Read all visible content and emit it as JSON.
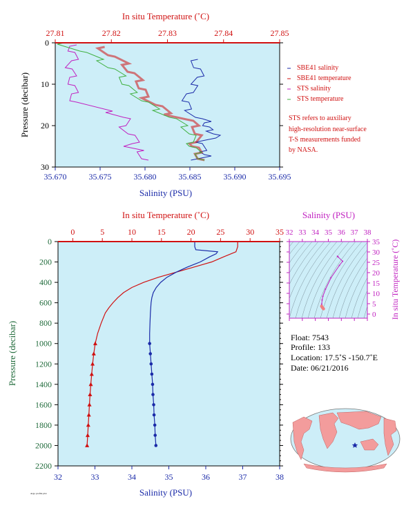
{
  "chart_data": [
    {
      "type": "line",
      "panel": "top",
      "top_axis_title": "In situ Temperature (˚C)",
      "bottom_axis_title": "Salinity (PSU)",
      "ylabel": "Pressure (decibar)",
      "top_ticks": [
        "27.81",
        "27.82",
        "27.83",
        "27.84",
        "27.85"
      ],
      "bottom_ticks": [
        "35.670",
        "35.675",
        "35.680",
        "35.685",
        "35.690",
        "35.695"
      ],
      "y_ticks": [
        "0",
        "10",
        "20",
        "30"
      ],
      "temp_range": [
        27.81,
        27.85
      ],
      "sal_range": [
        35.67,
        35.695
      ],
      "ylim": [
        30,
        0
      ],
      "grid": false,
      "legend_position": "right",
      "series": [
        {
          "name": "SBE41 salinity",
          "color": "#1a2aa8",
          "axis": "salinity",
          "x": [
            35.6855,
            35.6858,
            35.6862,
            35.6855,
            35.685,
            35.6845,
            35.6848,
            35.686,
            35.687,
            35.6868,
            35.6872,
            35.688,
            35.6875,
            35.686,
            35.6865,
            35.687,
            35.6855
          ],
          "y": [
            4,
            6,
            8,
            10,
            12,
            14,
            16,
            18,
            19,
            20,
            21,
            22,
            23,
            24,
            26,
            27,
            28
          ]
        },
        {
          "name": "SBE41 temperature",
          "color": "#d01010",
          "axis": "temperature",
          "x": [
            27.8182,
            27.82,
            27.8225,
            27.8235,
            27.825,
            27.8255,
            27.826,
            27.8285,
            27.83,
            27.834,
            27.835,
            27.8355,
            27.8345,
            27.835,
            27.8355,
            27.836
          ],
          "y": [
            1,
            3,
            5,
            7,
            9,
            11,
            13,
            15,
            17,
            18.5,
            20,
            22,
            24,
            25,
            26.5,
            28
          ]
        },
        {
          "name": "STS salinity",
          "color": "#c020c0",
          "axis": "salinity",
          "x": [
            35.672,
            35.6718,
            35.6722,
            35.6715,
            35.672,
            35.6718,
            35.6722,
            35.672,
            35.676,
            35.678,
            35.6775,
            35.6785,
            35.679,
            35.678,
            35.6795,
            35.68
          ],
          "y": [
            0.5,
            2,
            4,
            6,
            8,
            10,
            12,
            14,
            16.5,
            18,
            20,
            22,
            24,
            25,
            26,
            28
          ]
        },
        {
          "name": "STS temperature",
          "color": "#40b040",
          "axis": "temperature",
          "x": [
            27.811,
            27.815,
            27.818,
            27.82,
            27.822,
            27.8225,
            27.824,
            27.826,
            27.828,
            27.831,
            27.833,
            27.8345,
            27.834,
            27.8345,
            27.8355,
            27.836
          ],
          "y": [
            0,
            2,
            4,
            6,
            8,
            10,
            12,
            14,
            16,
            18,
            20,
            22,
            24,
            25,
            26.5,
            28
          ]
        }
      ]
    },
    {
      "type": "line",
      "panel": "bottom",
      "top_axis_title": "In situ Temperature (˚C)",
      "bottom_axis_title": "Salinity (PSU)",
      "ylabel": "Pressure (decibar)",
      "top_ticks": [
        "0",
        "5",
        "10",
        "15",
        "20",
        "25",
        "30",
        "35"
      ],
      "bottom_ticks": [
        "32",
        "33",
        "34",
        "35",
        "36",
        "37",
        "38"
      ],
      "y_ticks": [
        "0",
        "200",
        "400",
        "600",
        "800",
        "1000",
        "1200",
        "1400",
        "1600",
        "1800",
        "2000",
        "2200"
      ],
      "temp_range": [
        -2.5,
        35
      ],
      "sal_range": [
        32,
        38
      ],
      "ylim": [
        2200,
        0
      ],
      "grid": false,
      "series": [
        {
          "name": "temperature",
          "color": "#d01010",
          "axis": "temperature",
          "p": [
            0,
            50,
            100,
            150,
            200,
            250,
            300,
            350,
            400,
            450,
            500,
            550,
            600,
            650,
            700,
            800,
            900,
            1000,
            1100,
            1200,
            1300,
            1400,
            1500,
            1600,
            1700,
            1800,
            1900,
            2000
          ],
          "v": [
            27.9,
            27.9,
            27.6,
            25.5,
            23.5,
            20.5,
            17.5,
            14.5,
            12.0,
            10.0,
            8.6,
            7.6,
            6.8,
            6.1,
            5.5,
            4.8,
            4.2,
            3.8,
            3.55,
            3.35,
            3.2,
            3.05,
            2.92,
            2.82,
            2.72,
            2.62,
            2.52,
            2.42
          ]
        },
        {
          "name": "salinity",
          "color": "#1a2aa8",
          "axis": "salinity",
          "p": [
            0,
            50,
            80,
            100,
            120,
            150,
            200,
            250,
            300,
            350,
            400,
            450,
            500,
            550,
            600,
            700,
            800,
            900,
            1000,
            1100,
            1200,
            1300,
            1400,
            1500,
            1600,
            1700,
            1800,
            1900,
            2000
          ],
          "v": [
            35.7,
            35.7,
            35.73,
            36.32,
            36.28,
            36.1,
            35.85,
            35.5,
            35.2,
            34.95,
            34.78,
            34.66,
            34.58,
            34.54,
            34.52,
            34.5,
            34.49,
            34.48,
            34.48,
            34.5,
            34.52,
            34.54,
            34.56,
            34.57,
            34.59,
            34.6,
            34.62,
            34.63,
            34.65
          ]
        }
      ],
      "marker_start_pressure": 1000
    },
    {
      "type": "scatter",
      "panel": "ts-inset",
      "top_axis_title": "Salinity (PSU)",
      "right_axis_title": "In situ Temperature (˚C)",
      "x_ticks": [
        "32",
        "33",
        "34",
        "35",
        "36",
        "37",
        "38"
      ],
      "y_ticks": [
        "0",
        "5",
        "10",
        "15",
        "20",
        "25",
        "30",
        "35"
      ],
      "xlim": [
        32,
        38
      ],
      "ylim": [
        -2,
        35
      ],
      "series": [
        {
          "name": "profile",
          "color": "#c020c0",
          "x": [
            35.7,
            35.75,
            36.1,
            35.85,
            35.2,
            34.78,
            34.58,
            34.52,
            34.49
          ],
          "y": [
            27.9,
            27.6,
            25.5,
            23.5,
            17.5,
            12.0,
            8.6,
            6.8,
            4.8
          ]
        },
        {
          "name": "deep",
          "color": "#f08080",
          "x": [
            34.48,
            34.5,
            34.54,
            34.57,
            34.6,
            34.63
          ],
          "y": [
            3.8,
            3.55,
            3.2,
            2.92,
            2.72,
            2.52
          ]
        }
      ]
    }
  ],
  "legend": [
    {
      "label": "SBE41 salinity",
      "color": "#1a2aa8"
    },
    {
      "label": "SBE41 temperature",
      "color": "#d01010"
    },
    {
      "label": "STS salinity",
      "color": "#c020c0"
    },
    {
      "label": "STS temperature",
      "color": "#40b040"
    }
  ],
  "note": [
    "STS refers to auxiliary",
    "high-resolution near-surface",
    "T-S measurements funded",
    "by NASA."
  ],
  "info": {
    "float": "Float:  7543",
    "profile": "Profile:  133",
    "location": "Location:  17.5˚S  -150.7˚E",
    "date": "Date:  06/21/2016"
  },
  "footer": "Argo profile plot",
  "colors": {
    "panel_bg": "#cdeef8",
    "temperature": "#d01010",
    "salinity": "#1a2aa8",
    "sts_salinity": "#c020c0",
    "sts_temperature": "#40b040",
    "pressure_axis": "#1f6a3a"
  }
}
